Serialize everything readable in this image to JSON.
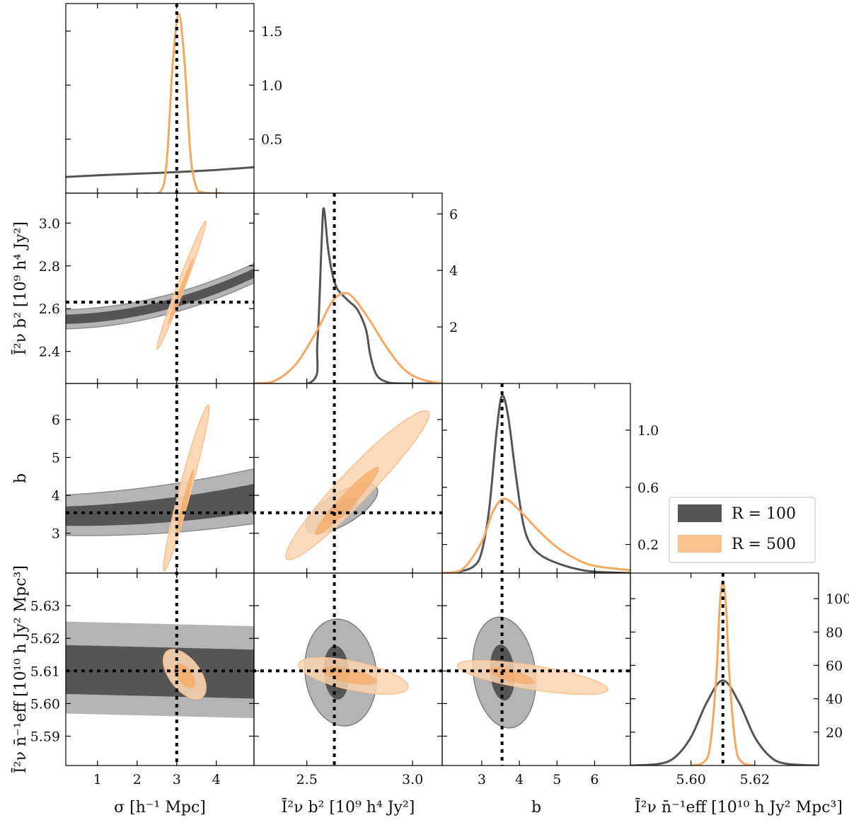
{
  "chart_data": {
    "type": "corner",
    "parameters": [
      {
        "id": "sigma",
        "label": "σ [h⁻¹ Mpc]",
        "range": [
          0.2,
          4.95
        ],
        "ticks": [
          1,
          2,
          3,
          4
        ],
        "tick_labels": [
          "1",
          "2",
          "3",
          "4"
        ],
        "truth": 3.0
      },
      {
        "id": "Ib2",
        "label": "Ī²ν b²  [10⁹ h⁴ Jy²]",
        "range": [
          2.25,
          3.14
        ],
        "ticks": [
          2.5,
          3.0
        ],
        "tick_labels": [
          "2.5",
          "3.0"
        ],
        "truth": 2.63
      },
      {
        "id": "b",
        "label": "b",
        "range": [
          1.95,
          6.95
        ],
        "ticks": [
          3,
          4,
          5,
          6
        ],
        "tick_labels": [
          "3",
          "4",
          "5",
          "6"
        ],
        "truth": 3.54
      },
      {
        "id": "In",
        "label": "Ī²ν n̄⁻¹eff  [10¹⁰ h Jy² Mpc³]",
        "range": [
          5.581,
          5.64
        ],
        "ticks": [
          5.6,
          5.62
        ],
        "tick_labels": [
          "5.60",
          "5.62"
        ],
        "truth": 5.61
      }
    ],
    "row_tick_labels": {
      "Ib2": {
        "ticks": [
          2.4,
          2.6,
          2.8,
          3.0
        ],
        "labels": [
          "2.4",
          "2.6",
          "2.8",
          "3.0"
        ]
      },
      "b": {
        "ticks": [
          3,
          4,
          5,
          6
        ],
        "labels": [
          "3",
          "4",
          "5",
          "6"
        ]
      },
      "In": {
        "ticks": [
          5.59,
          5.6,
          5.61,
          5.62,
          5.63
        ],
        "labels": [
          "5.59",
          "5.60",
          "5.61",
          "5.62",
          "5.63"
        ]
      }
    },
    "marginals": [
      {
        "param": "sigma",
        "ymax": 1.72,
        "ticks": [
          0.5,
          1.0,
          1.5
        ],
        "tick_labels": [
          "0.5",
          "1.0",
          "1.5"
        ]
      },
      {
        "param": "Ib2",
        "ymax": 6.6,
        "ticks": [
          2,
          4,
          6
        ],
        "tick_labels": [
          "2",
          "4",
          "6"
        ]
      },
      {
        "param": "b",
        "ymax": 1.3,
        "ticks": [
          0.2,
          0.6,
          1.0
        ],
        "tick_labels": [
          "0.2",
          "0.6",
          "1.0"
        ]
      },
      {
        "param": "In",
        "ymax": 113,
        "ticks": [
          20,
          40,
          60,
          80,
          100
        ],
        "tick_labels": [
          "20",
          "40",
          "60",
          "80",
          "100"
        ]
      }
    ],
    "series": [
      {
        "name": "R = 100",
        "color": "#555555",
        "marginal_curves": {
          "sigma": {
            "x": [
              0.2,
              1.0,
              2.0,
              3.0,
              4.0,
              4.95
            ],
            "y": [
              0.15,
              0.165,
              0.18,
              0.195,
              0.215,
              0.24
            ]
          },
          "Ib2": {
            "x": [
              2.25,
              2.52,
              2.55,
              2.57,
              2.58,
              2.6,
              2.62,
              2.64,
              2.66,
              2.7,
              2.74,
              2.78,
              2.8,
              2.83,
              2.88,
              2.95,
              3.14
            ],
            "y": [
              0,
              0.05,
              1.5,
              5.0,
              6.2,
              4.8,
              3.9,
              3.4,
              3.2,
              2.9,
              2.6,
              1.9,
              1.0,
              0.3,
              0.05,
              0,
              0
            ]
          },
          "b": {
            "x": [
              1.95,
              2.4,
              2.8,
              3.0,
              3.2,
              3.4,
              3.54,
              3.7,
              3.9,
              4.1,
              4.3,
              4.6,
              5.0,
              5.5,
              6.0,
              6.95
            ],
            "y": [
              0,
              0.01,
              0.05,
              0.15,
              0.45,
              1.0,
              1.24,
              1.1,
              0.7,
              0.35,
              0.2,
              0.12,
              0.07,
              0.03,
              0.01,
              0
            ]
          },
          "In": {
            "x": [
              5.581,
              5.59,
              5.595,
              5.6,
              5.605,
              5.61,
              5.615,
              5.62,
              5.625,
              5.63,
              5.64
            ],
            "y": [
              0,
              1,
              5,
              17,
              38,
              51,
              38,
              17,
              5,
              1,
              0
            ]
          }
        }
      },
      {
        "name": "R = 500",
        "color": "#f5a862",
        "marginal_curves": {
          "sigma": {
            "x": [
              2.2,
              2.6,
              2.75,
              2.9,
              3.05,
              3.2,
              3.35,
              3.5,
              3.65,
              3.8,
              4.2
            ],
            "y": [
              0,
              0.02,
              0.3,
              1.2,
              1.66,
              1.2,
              0.35,
              0.05,
              0.01,
              0,
              0
            ]
          },
          "Ib2": {
            "x": [
              2.25,
              2.35,
              2.45,
              2.55,
              2.62,
              2.68,
              2.73,
              2.8,
              2.88,
              2.96,
              3.04,
              3.14
            ],
            "y": [
              0,
              0.1,
              0.7,
              1.9,
              2.9,
              3.2,
              2.95,
              2.2,
              1.25,
              0.5,
              0.15,
              0
            ]
          },
          "b": {
            "x": [
              1.95,
              2.5,
              3.0,
              3.3,
              3.6,
              4.0,
              4.5,
              5.0,
              5.5,
              6.0,
              6.95
            ],
            "y": [
              0,
              0.03,
              0.22,
              0.43,
              0.52,
              0.44,
              0.3,
              0.18,
              0.1,
              0.05,
              0.02
            ]
          },
          "In": {
            "x": [
              5.6,
              5.604,
              5.606,
              5.608,
              5.609,
              5.61,
              5.611,
              5.612,
              5.614,
              5.616,
              5.62
            ],
            "y": [
              0,
              2,
              12,
              55,
              95,
              110,
              95,
              55,
              12,
              2,
              0
            ]
          }
        }
      }
    ],
    "truth_values": {
      "sigma": 3.0,
      "Ib2": 2.63,
      "b": 3.54,
      "In": 5.61
    },
    "grid": false,
    "legend_position": "right-middle"
  }
}
